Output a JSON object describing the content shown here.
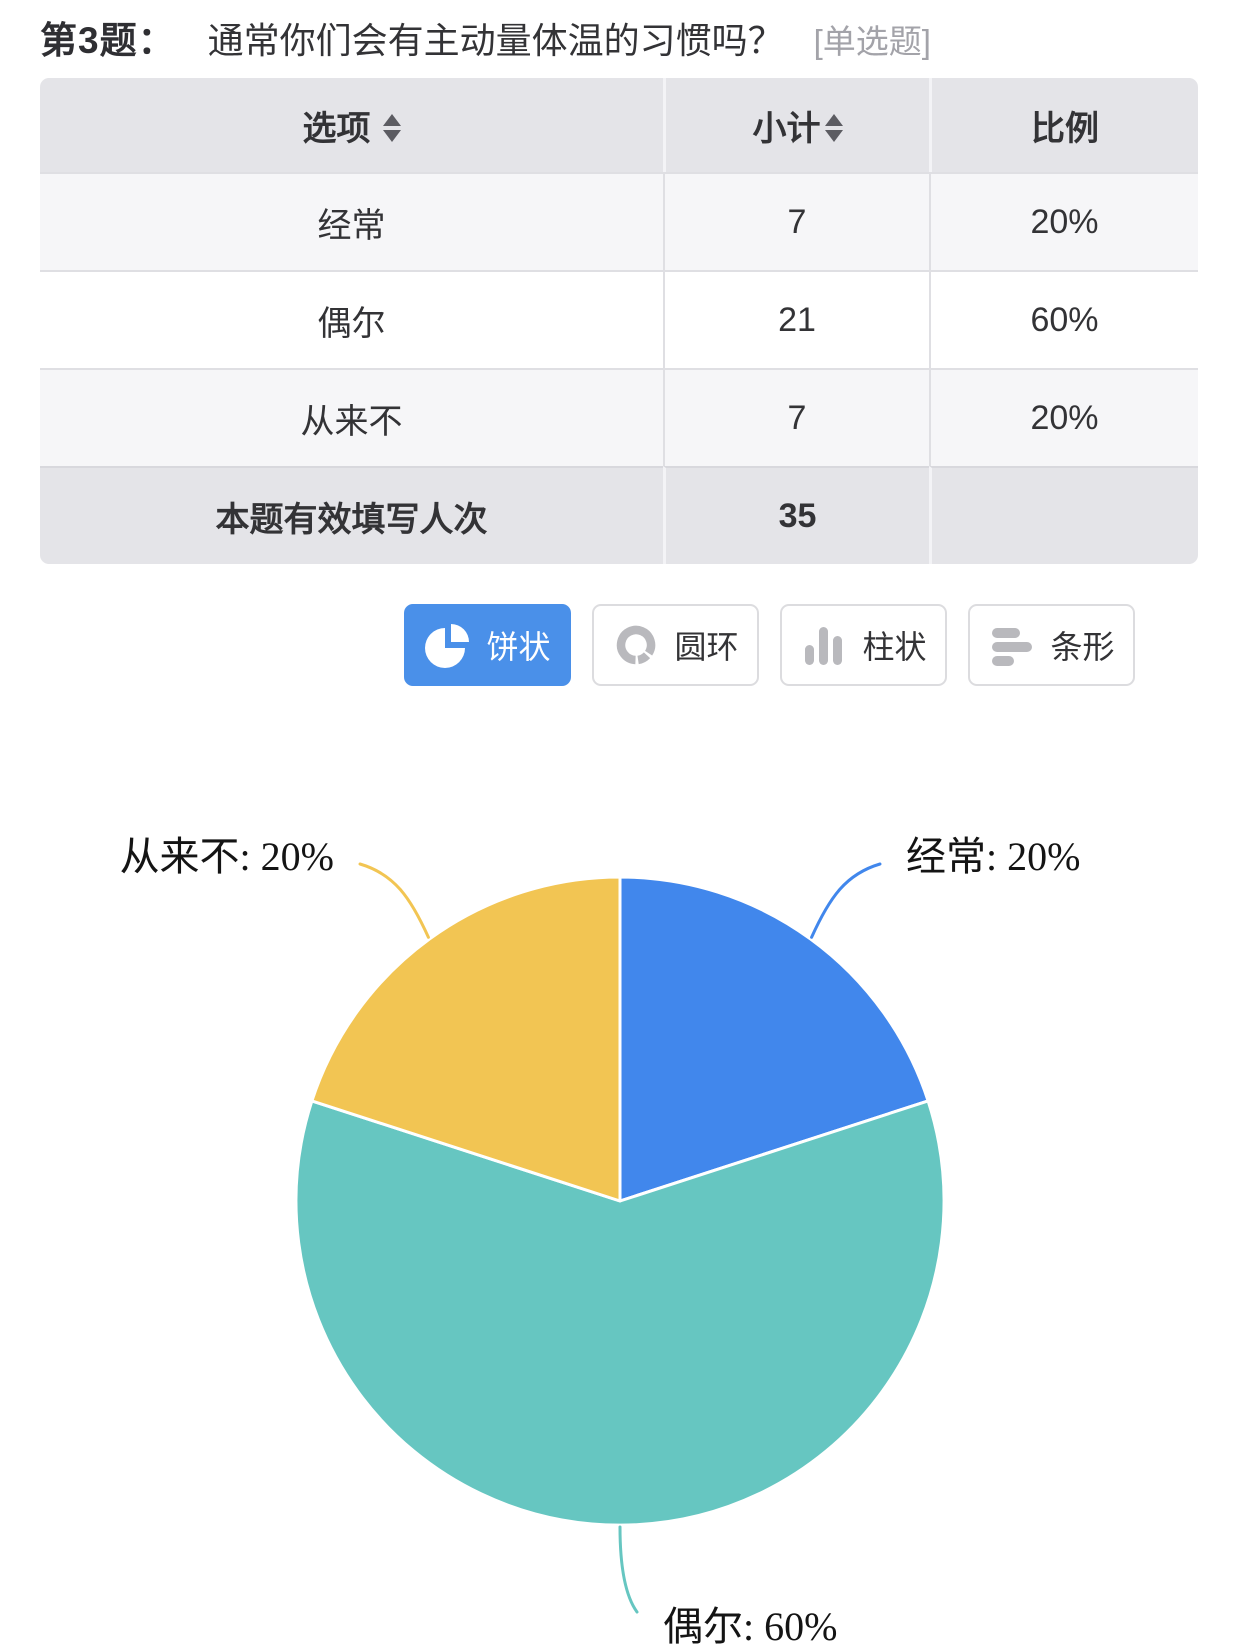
{
  "header": {
    "question_no": "第3题：",
    "question": "通常你们会有主动量体温的习惯吗？",
    "type_tag": "[单选题]"
  },
  "table": {
    "headers": {
      "option": "选项",
      "count": "小计",
      "ratio": "比例"
    },
    "rows": [
      {
        "option": "经常",
        "count": "7",
        "ratio": "20%"
      },
      {
        "option": "偶尔",
        "count": "21",
        "ratio": "60%"
      },
      {
        "option": "从来不",
        "count": "7",
        "ratio": "20%"
      }
    ],
    "footer": {
      "label": "本题有效填写人次",
      "count": "35",
      "ratio": ""
    }
  },
  "chart_buttons": [
    {
      "label": "饼状",
      "icon": "pie-icon",
      "active": true
    },
    {
      "label": "圆环",
      "icon": "donut-icon",
      "active": false
    },
    {
      "label": "柱状",
      "icon": "column-icon",
      "active": false
    },
    {
      "label": "条形",
      "icon": "bar-icon",
      "active": false
    }
  ],
  "colors": {
    "active_button_blue": "#4a90e9",
    "table_header_gray": "#e4e4e8",
    "pie_blue": "#4187ec",
    "pie_teal": "#66c6c1",
    "pie_yellow": "#f2c553"
  },
  "chart_data": {
    "type": "pie",
    "categories": [
      "经常",
      "偶尔",
      "从来不"
    ],
    "values": [
      7,
      21,
      7
    ],
    "total_responses": 35,
    "legend_position": "none",
    "start_angle_deg": 0,
    "slices": [
      {
        "name": "经常",
        "value": 7,
        "pct": 20,
        "color": "#4187ec",
        "label": "经常: 20%",
        "label_side": "right"
      },
      {
        "name": "偶尔",
        "value": 21,
        "pct": 60,
        "color": "#66c6c1",
        "label": "偶尔: 60%",
        "label_side": "bottom"
      },
      {
        "name": "从来不",
        "value": 7,
        "pct": 20,
        "color": "#f2c553",
        "label": "从来不: 20%",
        "label_side": "left"
      }
    ]
  }
}
